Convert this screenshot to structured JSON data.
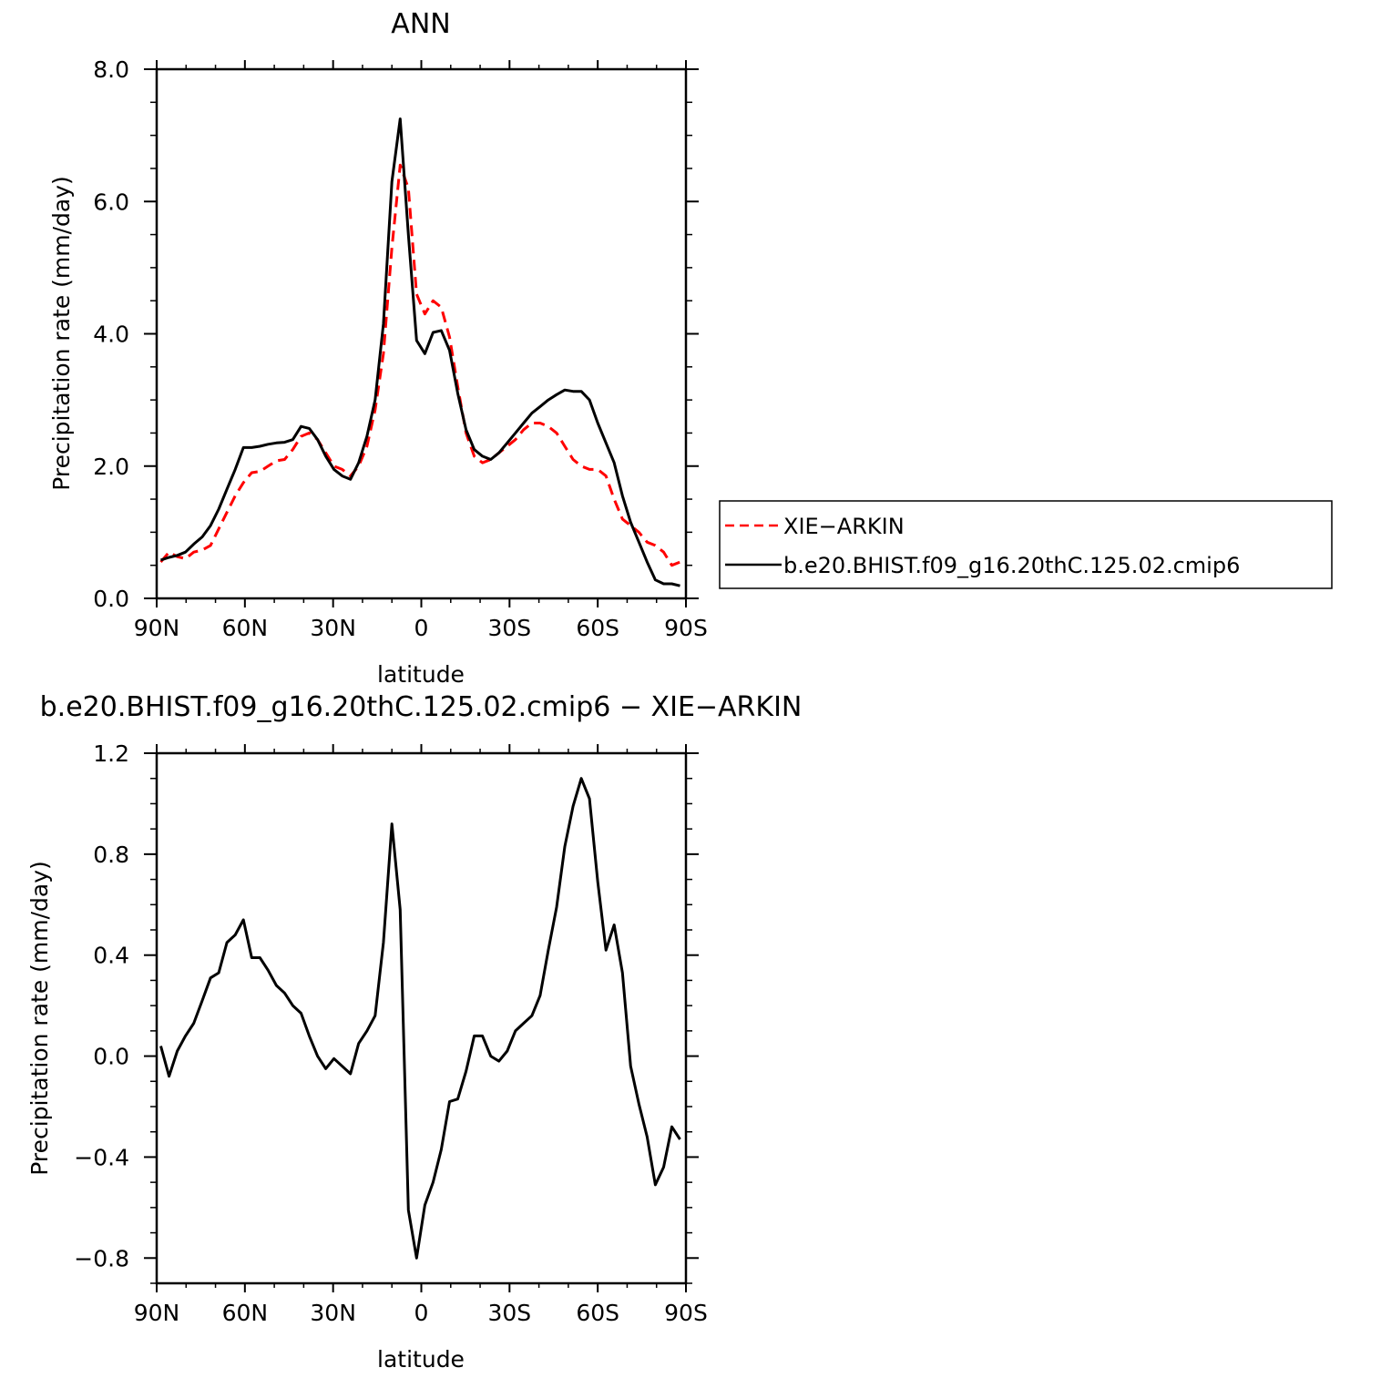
{
  "figure": {
    "top_title": "ANN",
    "diff_title": "b.e20.BHIST.f09_g16.20thC.125.02.cmip6 − XIE−ARKIN"
  },
  "chart_data": [
    {
      "type": "line",
      "title": "ANN",
      "xlabel": "latitude",
      "ylabel": "Precipitation rate (mm/day)",
      "ylim": [
        0,
        8
      ],
      "xlim": [
        -90,
        90
      ],
      "x_tick_values": [
        -90,
        -60,
        -30,
        0,
        30,
        60,
        90
      ],
      "x_tick_labels": [
        "90N",
        "60N",
        "30N",
        "0",
        "30S",
        "60S",
        "90S"
      ],
      "y_tick_values": [
        0,
        2,
        4,
        6,
        8
      ],
      "y_tick_labels": [
        "0.0",
        "2.0",
        "4.0",
        "6.0",
        "8.0"
      ],
      "legend": "right",
      "x": [
        -88.6,
        -85.8,
        -83.0,
        -80.2,
        -77.4,
        -74.5,
        -71.7,
        -68.9,
        -66.1,
        -63.3,
        -60.5,
        -57.7,
        -54.9,
        -52.1,
        -49.3,
        -46.5,
        -43.7,
        -40.9,
        -38.1,
        -35.3,
        -32.5,
        -29.7,
        -26.9,
        -24.1,
        -21.3,
        -18.5,
        -15.7,
        -12.9,
        -10.0,
        -7.2,
        -4.4,
        -1.6,
        1.2,
        4.0,
        6.8,
        9.6,
        12.4,
        15.2,
        18.0,
        20.8,
        23.6,
        26.4,
        29.2,
        32.0,
        34.8,
        37.6,
        40.4,
        43.2,
        46.0,
        48.8,
        51.6,
        54.4,
        57.2,
        60.0,
        62.8,
        65.6,
        68.4,
        71.2,
        74.0,
        76.8,
        79.6,
        82.4,
        85.2,
        88.0
      ],
      "series": [
        {
          "name": "XIE−ARKIN",
          "color": "#ff0000",
          "dash": "dashed",
          "values": [
            0.55,
            0.7,
            0.63,
            0.6,
            0.7,
            0.73,
            0.8,
            1.05,
            1.3,
            1.55,
            1.75,
            1.9,
            1.92,
            2.0,
            2.08,
            2.1,
            2.25,
            2.45,
            2.5,
            2.4,
            2.2,
            2.0,
            1.95,
            1.85,
            2.0,
            2.3,
            2.85,
            3.7,
            5.3,
            6.55,
            6.2,
            4.6,
            4.3,
            4.5,
            4.4,
            3.95,
            3.2,
            2.5,
            2.15,
            2.05,
            2.1,
            2.2,
            2.3,
            2.4,
            2.55,
            2.65,
            2.65,
            2.6,
            2.5,
            2.3,
            2.1,
            2.0,
            1.95,
            1.95,
            1.85,
            1.5,
            1.2,
            1.1,
            1.0,
            0.85,
            0.8,
            0.7,
            0.5,
            0.55
          ]
        },
        {
          "name": "b.e20.BHIST.f09_g16.20thC.125.02.cmip6",
          "color": "#000000",
          "dash": "solid",
          "values": [
            0.58,
            0.62,
            0.65,
            0.7,
            0.82,
            0.93,
            1.1,
            1.35,
            1.65,
            1.95,
            2.28,
            2.28,
            2.3,
            2.33,
            2.35,
            2.36,
            2.4,
            2.6,
            2.57,
            2.4,
            2.15,
            1.95,
            1.85,
            1.8,
            2.05,
            2.45,
            3.0,
            4.15,
            6.3,
            7.25,
            5.5,
            3.9,
            3.7,
            4.02,
            4.05,
            3.75,
            3.1,
            2.55,
            2.25,
            2.15,
            2.1,
            2.2,
            2.35,
            2.5,
            2.65,
            2.8,
            2.9,
            3.0,
            3.08,
            3.15,
            3.13,
            3.13,
            3.0,
            2.65,
            2.35,
            2.05,
            1.55,
            1.15,
            0.85,
            0.55,
            0.28,
            0.22,
            0.22,
            0.19
          ]
        }
      ]
    },
    {
      "type": "line",
      "title": "b.e20.BHIST.f09_g16.20thC.125.02.cmip6 − XIE−ARKIN",
      "xlabel": "latitude",
      "ylabel": "Precipitation rate (mm/day)",
      "ylim": [
        -0.9,
        1.2
      ],
      "xlim": [
        -90,
        90
      ],
      "x_tick_values": [
        -90,
        -60,
        -30,
        0,
        30,
        60,
        90
      ],
      "x_tick_labels": [
        "90N",
        "60N",
        "30N",
        "0",
        "30S",
        "60S",
        "90S"
      ],
      "y_tick_values": [
        -0.8,
        -0.4,
        0.0,
        0.4,
        0.8,
        1.2
      ],
      "y_tick_labels": [
        "−0.8",
        "−0.4",
        "0.0",
        "0.4",
        "0.8",
        "1.2"
      ],
      "x": [
        -88.6,
        -85.8,
        -83.0,
        -80.2,
        -77.4,
        -74.5,
        -71.7,
        -68.9,
        -66.1,
        -63.3,
        -60.5,
        -57.7,
        -54.9,
        -52.1,
        -49.3,
        -46.5,
        -43.7,
        -40.9,
        -38.1,
        -35.3,
        -32.5,
        -29.7,
        -26.9,
        -24.1,
        -21.3,
        -18.5,
        -15.7,
        -12.9,
        -10.0,
        -7.2,
        -4.4,
        -1.6,
        1.2,
        4.0,
        6.8,
        9.6,
        12.4,
        15.2,
        18.0,
        20.8,
        23.6,
        26.4,
        29.2,
        32.0,
        34.8,
        37.6,
        40.4,
        43.2,
        46.0,
        48.8,
        51.6,
        54.4,
        57.2,
        60.0,
        62.8,
        65.6,
        68.4,
        71.2,
        74.0,
        76.8,
        79.6,
        82.4,
        85.2,
        88.0
      ],
      "series": [
        {
          "color": "#000000",
          "dash": "solid",
          "values": [
            0.04,
            -0.08,
            0.02,
            0.08,
            0.13,
            0.22,
            0.31,
            0.33,
            0.45,
            0.48,
            0.54,
            0.39,
            0.39,
            0.34,
            0.28,
            0.25,
            0.2,
            0.17,
            0.08,
            0.0,
            -0.05,
            -0.01,
            -0.04,
            -0.07,
            0.05,
            0.1,
            0.16,
            0.45,
            0.92,
            0.58,
            -0.61,
            -0.8,
            -0.59,
            -0.5,
            -0.37,
            -0.18,
            -0.17,
            -0.06,
            0.08,
            0.08,
            0.0,
            -0.02,
            0.02,
            0.1,
            0.13,
            0.16,
            0.24,
            0.42,
            0.59,
            0.83,
            0.99,
            1.1,
            1.02,
            0.69,
            0.42,
            0.52,
            0.33,
            -0.04,
            -0.19,
            -0.32,
            -0.51,
            -0.44,
            -0.28,
            -0.33
          ]
        }
      ]
    }
  ]
}
